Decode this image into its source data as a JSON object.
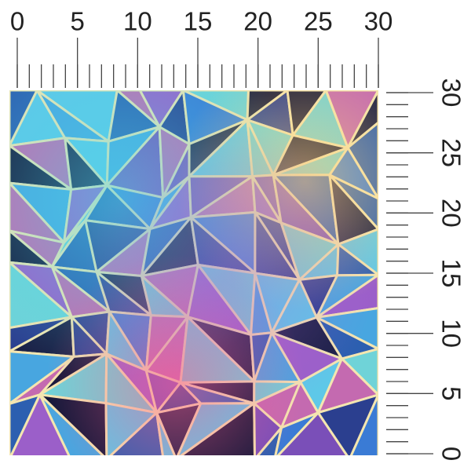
{
  "top_ruler": {
    "range": [
      0,
      30
    ],
    "labels": [
      0,
      5,
      10,
      15,
      20,
      25,
      30
    ]
  },
  "right_ruler": {
    "range": [
      0,
      30
    ],
    "labels": [
      0,
      5,
      10,
      15,
      20,
      25,
      30
    ]
  }
}
